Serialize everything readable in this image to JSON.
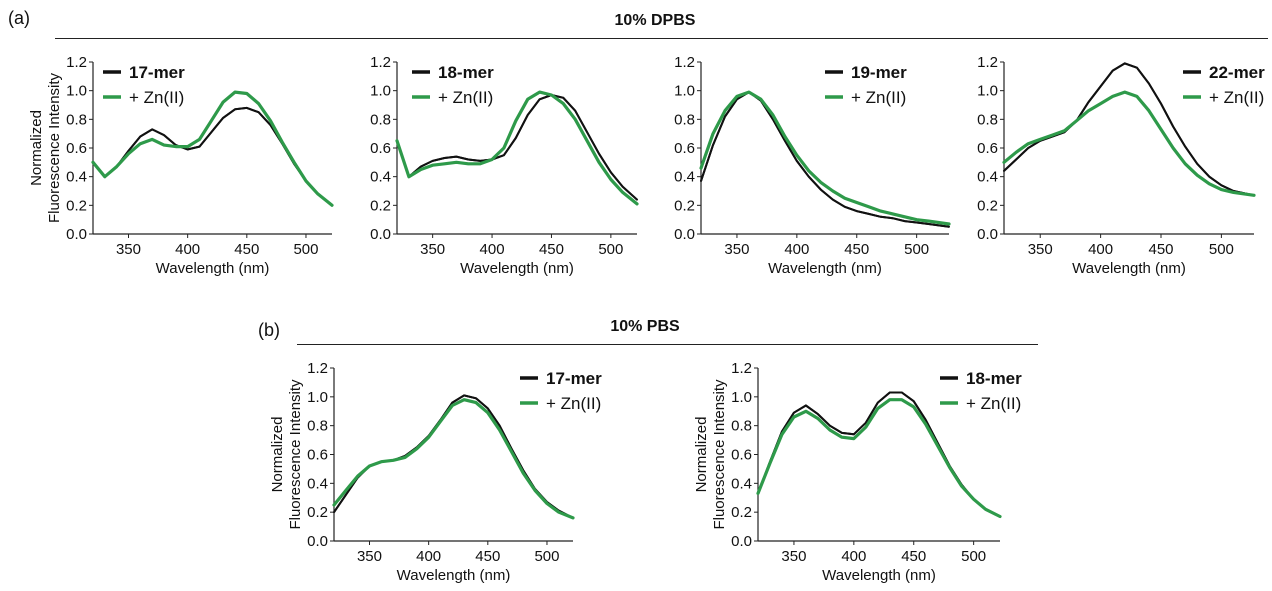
{
  "panel_a_label": "(a)",
  "panel_b_label": "(b)",
  "section_a_title": "10% DPBS",
  "section_b_title": "10% PBS",
  "colors": {
    "dna": "#111111",
    "zn": "#2e9a4a"
  },
  "chart_data": [
    {
      "type": "line",
      "xlabel": "Wavelength (nm)",
      "ylabel": "Normalized Fluorescence Intensity",
      "ylabel_lines": [
        "Normalized",
        "Fluorescence Intensity"
      ],
      "xlim": [
        320,
        522
      ],
      "ylim": [
        0,
        1.2
      ],
      "xticks": [
        350,
        400,
        450,
        500
      ],
      "yticks": [
        "0.0",
        "0.2",
        "0.4",
        "0.6",
        "0.8",
        "1.0",
        "1.2"
      ],
      "legend_position": "top-left",
      "series": [
        {
          "name": "17-mer",
          "color": "#111111",
          "x": [
            320,
            330,
            340,
            350,
            360,
            370,
            380,
            390,
            400,
            410,
            420,
            430,
            440,
            450,
            460,
            470,
            480,
            490,
            500,
            510,
            522
          ],
          "y": [
            0.5,
            0.4,
            0.47,
            0.58,
            0.68,
            0.73,
            0.69,
            0.62,
            0.59,
            0.61,
            0.71,
            0.81,
            0.87,
            0.88,
            0.85,
            0.76,
            0.63,
            0.49,
            0.37,
            0.28,
            0.2
          ]
        },
        {
          "name": "+ Zn(II)",
          "color": "#2e9a4a",
          "x": [
            320,
            330,
            340,
            350,
            360,
            370,
            380,
            390,
            400,
            410,
            420,
            430,
            440,
            450,
            460,
            470,
            480,
            490,
            500,
            510,
            522
          ],
          "y": [
            0.5,
            0.4,
            0.47,
            0.56,
            0.63,
            0.66,
            0.62,
            0.61,
            0.61,
            0.66,
            0.79,
            0.92,
            0.99,
            0.98,
            0.91,
            0.79,
            0.64,
            0.5,
            0.37,
            0.28,
            0.2
          ]
        }
      ]
    },
    {
      "type": "line",
      "xlabel": "Wavelength (nm)",
      "ylabel": "",
      "xlim": [
        320,
        522
      ],
      "ylim": [
        0,
        1.2
      ],
      "xticks": [
        350,
        400,
        450,
        500
      ],
      "yticks": [
        "0.0",
        "0.2",
        "0.4",
        "0.6",
        "0.8",
        "1.0",
        "1.2"
      ],
      "legend_position": "top-left",
      "series": [
        {
          "name": "18-mer",
          "color": "#111111",
          "x": [
            320,
            330,
            340,
            350,
            360,
            370,
            380,
            390,
            400,
            410,
            420,
            430,
            440,
            450,
            460,
            470,
            480,
            490,
            500,
            510,
            522
          ],
          "y": [
            0.65,
            0.4,
            0.47,
            0.51,
            0.53,
            0.54,
            0.52,
            0.51,
            0.52,
            0.55,
            0.67,
            0.83,
            0.94,
            0.97,
            0.95,
            0.86,
            0.71,
            0.56,
            0.43,
            0.33,
            0.24
          ]
        },
        {
          "name": "+ Zn(II)",
          "color": "#2e9a4a",
          "x": [
            320,
            330,
            340,
            350,
            360,
            370,
            380,
            390,
            400,
            410,
            420,
            430,
            440,
            450,
            460,
            470,
            480,
            490,
            500,
            510,
            522
          ],
          "y": [
            0.65,
            0.4,
            0.45,
            0.48,
            0.49,
            0.5,
            0.49,
            0.49,
            0.52,
            0.6,
            0.79,
            0.94,
            0.99,
            0.97,
            0.91,
            0.8,
            0.65,
            0.5,
            0.38,
            0.29,
            0.21
          ]
        }
      ]
    },
    {
      "type": "line",
      "xlabel": "Wavelength (nm)",
      "ylabel": "",
      "xlim": [
        320,
        527
      ],
      "ylim": [
        0,
        1.2
      ],
      "xticks": [
        350,
        400,
        450,
        500
      ],
      "yticks": [
        "0.0",
        "0.2",
        "0.4",
        "0.6",
        "0.8",
        "1.0",
        "1.2"
      ],
      "legend_position": "top-right",
      "series": [
        {
          "name": "19-mer",
          "color": "#111111",
          "x": [
            320,
            330,
            340,
            350,
            360,
            370,
            380,
            390,
            400,
            410,
            420,
            430,
            440,
            450,
            460,
            470,
            480,
            490,
            500,
            510,
            527
          ],
          "y": [
            0.37,
            0.62,
            0.82,
            0.94,
            0.99,
            0.93,
            0.8,
            0.65,
            0.51,
            0.4,
            0.31,
            0.24,
            0.19,
            0.16,
            0.14,
            0.12,
            0.11,
            0.09,
            0.08,
            0.07,
            0.05
          ]
        },
        {
          "name": "+ Zn(II)",
          "color": "#2e9a4a",
          "x": [
            320,
            330,
            340,
            350,
            360,
            370,
            380,
            390,
            400,
            410,
            420,
            430,
            440,
            450,
            460,
            470,
            480,
            490,
            500,
            510,
            527
          ],
          "y": [
            0.46,
            0.7,
            0.86,
            0.96,
            0.99,
            0.94,
            0.83,
            0.68,
            0.55,
            0.44,
            0.36,
            0.3,
            0.25,
            0.22,
            0.19,
            0.16,
            0.14,
            0.12,
            0.1,
            0.09,
            0.07
          ]
        }
      ]
    },
    {
      "type": "line",
      "xlabel": "Wavelength (nm)",
      "ylabel": "",
      "xlim": [
        320,
        527
      ],
      "ylim": [
        0,
        1.2
      ],
      "xticks": [
        350,
        400,
        450,
        500
      ],
      "yticks": [
        "0.0",
        "0.2",
        "0.4",
        "0.6",
        "0.8",
        "1.0",
        "1.2"
      ],
      "legend_position": "top-right",
      "series": [
        {
          "name": "22-mer",
          "color": "#111111",
          "x": [
            320,
            330,
            340,
            350,
            360,
            370,
            380,
            390,
            400,
            410,
            420,
            430,
            440,
            450,
            460,
            470,
            480,
            490,
            500,
            510,
            527
          ],
          "y": [
            0.44,
            0.52,
            0.6,
            0.65,
            0.68,
            0.71,
            0.79,
            0.92,
            1.03,
            1.14,
            1.19,
            1.16,
            1.05,
            0.91,
            0.75,
            0.61,
            0.49,
            0.4,
            0.34,
            0.3,
            0.27
          ]
        },
        {
          "name": "+ Zn(II)",
          "color": "#2e9a4a",
          "x": [
            320,
            330,
            340,
            350,
            360,
            370,
            380,
            390,
            400,
            410,
            420,
            430,
            440,
            450,
            460,
            470,
            480,
            490,
            500,
            510,
            527
          ],
          "y": [
            0.5,
            0.57,
            0.63,
            0.66,
            0.69,
            0.72,
            0.79,
            0.86,
            0.91,
            0.96,
            0.99,
            0.96,
            0.86,
            0.73,
            0.6,
            0.49,
            0.41,
            0.35,
            0.31,
            0.29,
            0.27
          ]
        }
      ]
    },
    {
      "type": "line",
      "xlabel": "Wavelength (nm)",
      "ylabel": "Normalized Fluorescence Intensity",
      "ylabel_lines": [
        "Normalized",
        "Fluorescence Intensity"
      ],
      "xlim": [
        320,
        522
      ],
      "ylim": [
        0,
        1.2
      ],
      "xticks": [
        350,
        400,
        450,
        500
      ],
      "yticks": [
        "0.0",
        "0.2",
        "0.4",
        "0.6",
        "0.8",
        "1.0",
        "1.2"
      ],
      "legend_position": "top-right",
      "series": [
        {
          "name": "17-mer",
          "color": "#111111",
          "x": [
            320,
            330,
            340,
            350,
            360,
            370,
            380,
            390,
            400,
            410,
            420,
            430,
            440,
            450,
            460,
            470,
            480,
            490,
            500,
            510,
            522
          ],
          "y": [
            0.2,
            0.32,
            0.44,
            0.52,
            0.55,
            0.56,
            0.59,
            0.65,
            0.73,
            0.84,
            0.96,
            1.01,
            0.99,
            0.92,
            0.8,
            0.64,
            0.49,
            0.36,
            0.27,
            0.21,
            0.16
          ]
        },
        {
          "name": "+ Zn(II)",
          "color": "#2e9a4a",
          "x": [
            320,
            330,
            340,
            350,
            360,
            370,
            380,
            390,
            400,
            410,
            420,
            430,
            440,
            450,
            460,
            470,
            480,
            490,
            500,
            510,
            522
          ],
          "y": [
            0.25,
            0.35,
            0.45,
            0.52,
            0.55,
            0.56,
            0.58,
            0.64,
            0.72,
            0.83,
            0.94,
            0.98,
            0.96,
            0.89,
            0.77,
            0.62,
            0.47,
            0.35,
            0.26,
            0.2,
            0.16
          ]
        }
      ]
    },
    {
      "type": "line",
      "xlabel": "Wavelength (nm)",
      "ylabel": "Normalized Fluorescence Intensity",
      "ylabel_lines": [
        "Normalized",
        "Fluorescence Intensity"
      ],
      "xlim": [
        320,
        522
      ],
      "ylim": [
        0,
        1.2
      ],
      "xticks": [
        350,
        400,
        450,
        500
      ],
      "yticks": [
        "0.0",
        "0.2",
        "0.4",
        "0.6",
        "0.8",
        "1.0",
        "1.2"
      ],
      "legend_position": "top-right",
      "series": [
        {
          "name": "18-mer",
          "color": "#111111",
          "x": [
            320,
            330,
            340,
            350,
            360,
            370,
            380,
            390,
            400,
            410,
            420,
            430,
            440,
            450,
            460,
            470,
            480,
            490,
            500,
            510,
            522
          ],
          "y": [
            0.33,
            0.55,
            0.76,
            0.89,
            0.94,
            0.88,
            0.8,
            0.75,
            0.74,
            0.82,
            0.96,
            1.03,
            1.03,
            0.97,
            0.84,
            0.68,
            0.52,
            0.39,
            0.29,
            0.22,
            0.17
          ]
        },
        {
          "name": "+ Zn(II)",
          "color": "#2e9a4a",
          "x": [
            320,
            330,
            340,
            350,
            360,
            370,
            380,
            390,
            400,
            410,
            420,
            430,
            440,
            450,
            460,
            470,
            480,
            490,
            500,
            510,
            522
          ],
          "y": [
            0.33,
            0.54,
            0.74,
            0.86,
            0.9,
            0.85,
            0.77,
            0.72,
            0.71,
            0.79,
            0.92,
            0.98,
            0.98,
            0.93,
            0.81,
            0.66,
            0.51,
            0.38,
            0.29,
            0.22,
            0.17
          ]
        }
      ]
    }
  ]
}
